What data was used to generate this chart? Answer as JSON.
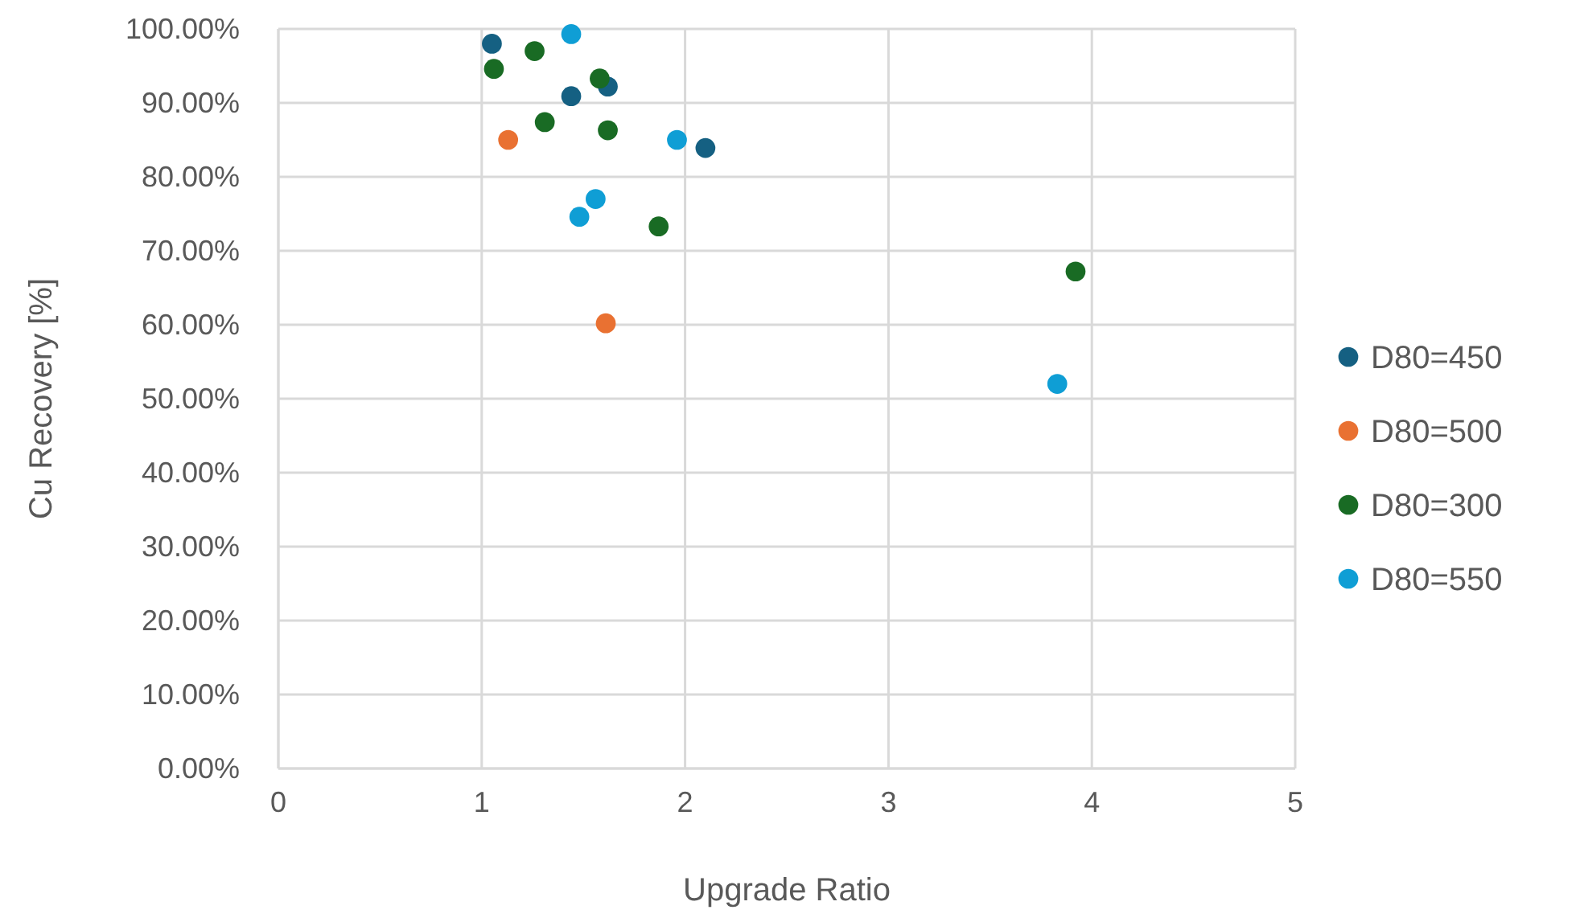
{
  "chart_data": {
    "type": "scatter",
    "xlabel": "Upgrade Ratio",
    "ylabel": "Cu Recovery [%]",
    "xlim": [
      0,
      5
    ],
    "xticks": [
      0,
      1,
      2,
      3,
      4,
      5
    ],
    "ylim": [
      0,
      100
    ],
    "yticks": [
      {
        "value": 0,
        "label": "0.00%"
      },
      {
        "value": 10,
        "label": "10.00%"
      },
      {
        "value": 20,
        "label": "20.00%"
      },
      {
        "value": 30,
        "label": "30.00%"
      },
      {
        "value": 40,
        "label": "40.00%"
      },
      {
        "value": 50,
        "label": "50.00%"
      },
      {
        "value": 60,
        "label": "60.00%"
      },
      {
        "value": 70,
        "label": "70.00%"
      },
      {
        "value": 80,
        "label": "80.00%"
      },
      {
        "value": 90,
        "label": "90.00%"
      },
      {
        "value": 100,
        "label": "100.00%"
      }
    ],
    "grid": true,
    "legend": "right",
    "marker": "circle",
    "series": [
      {
        "name": "D80=450",
        "color": "#156082",
        "x": [
          1.05,
          1.44,
          1.62,
          2.1
        ],
        "values": [
          98,
          90.9,
          92.2,
          83.9
        ]
      },
      {
        "name": "D80=500",
        "color": "#e97132",
        "x": [
          1.13,
          1.61
        ],
        "values": [
          85,
          60.2
        ]
      },
      {
        "name": "D80=300",
        "color": "#196b24",
        "x": [
          1.06,
          1.26,
          1.58,
          1.31,
          1.62,
          1.87,
          3.92
        ],
        "values": [
          94.6,
          97,
          93.3,
          87.4,
          86.3,
          73.3,
          67.2
        ]
      },
      {
        "name": "D80=550",
        "color": "#0f9ed5",
        "x": [
          1.44,
          1.96,
          1.56,
          1.48,
          3.83
        ],
        "values": [
          99.3,
          85,
          77,
          74.6,
          52
        ]
      }
    ]
  }
}
